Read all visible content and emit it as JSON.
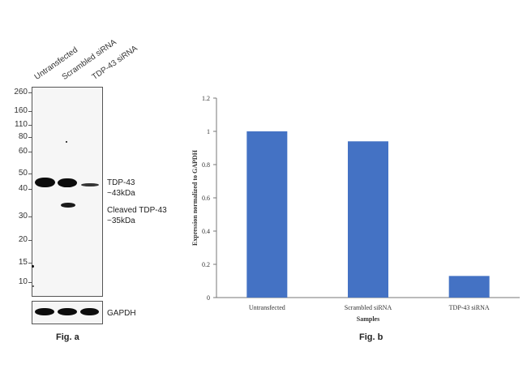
{
  "fig_a": {
    "lanes": [
      "Untransfected",
      "Scrambled siRNA",
      "TDP-43 siRNA"
    ],
    "mw_markers": [
      "260",
      "160",
      "110",
      "80",
      "60",
      "50",
      "40",
      "30",
      "20",
      "15",
      "10"
    ],
    "annotations": {
      "tdp43_line1": "TDP-43",
      "tdp43_line2": "~43kDa",
      "cleaved_line1": "Cleaved TDP-43",
      "cleaved_line2": "~35kDa",
      "loading_control": "GAPDH"
    },
    "caption": "Fig. a"
  },
  "fig_b": {
    "caption": "Fig. b"
  },
  "chart_data": {
    "type": "bar",
    "categories": [
      "Untransfected",
      "Scrambled siRNA",
      "TDP-43 siRNA"
    ],
    "values": [
      1.0,
      0.94,
      0.13
    ],
    "title": "",
    "xlabel": "Samples",
    "ylabel": "Expression normalized to GAPDH",
    "ylim": [
      0,
      1.2
    ],
    "yticks": [
      "0",
      "0.2",
      "0.4",
      "0.6",
      "0.8",
      "1",
      "1.2"
    ],
    "bar_color": "#4472c4",
    "grid": false
  }
}
